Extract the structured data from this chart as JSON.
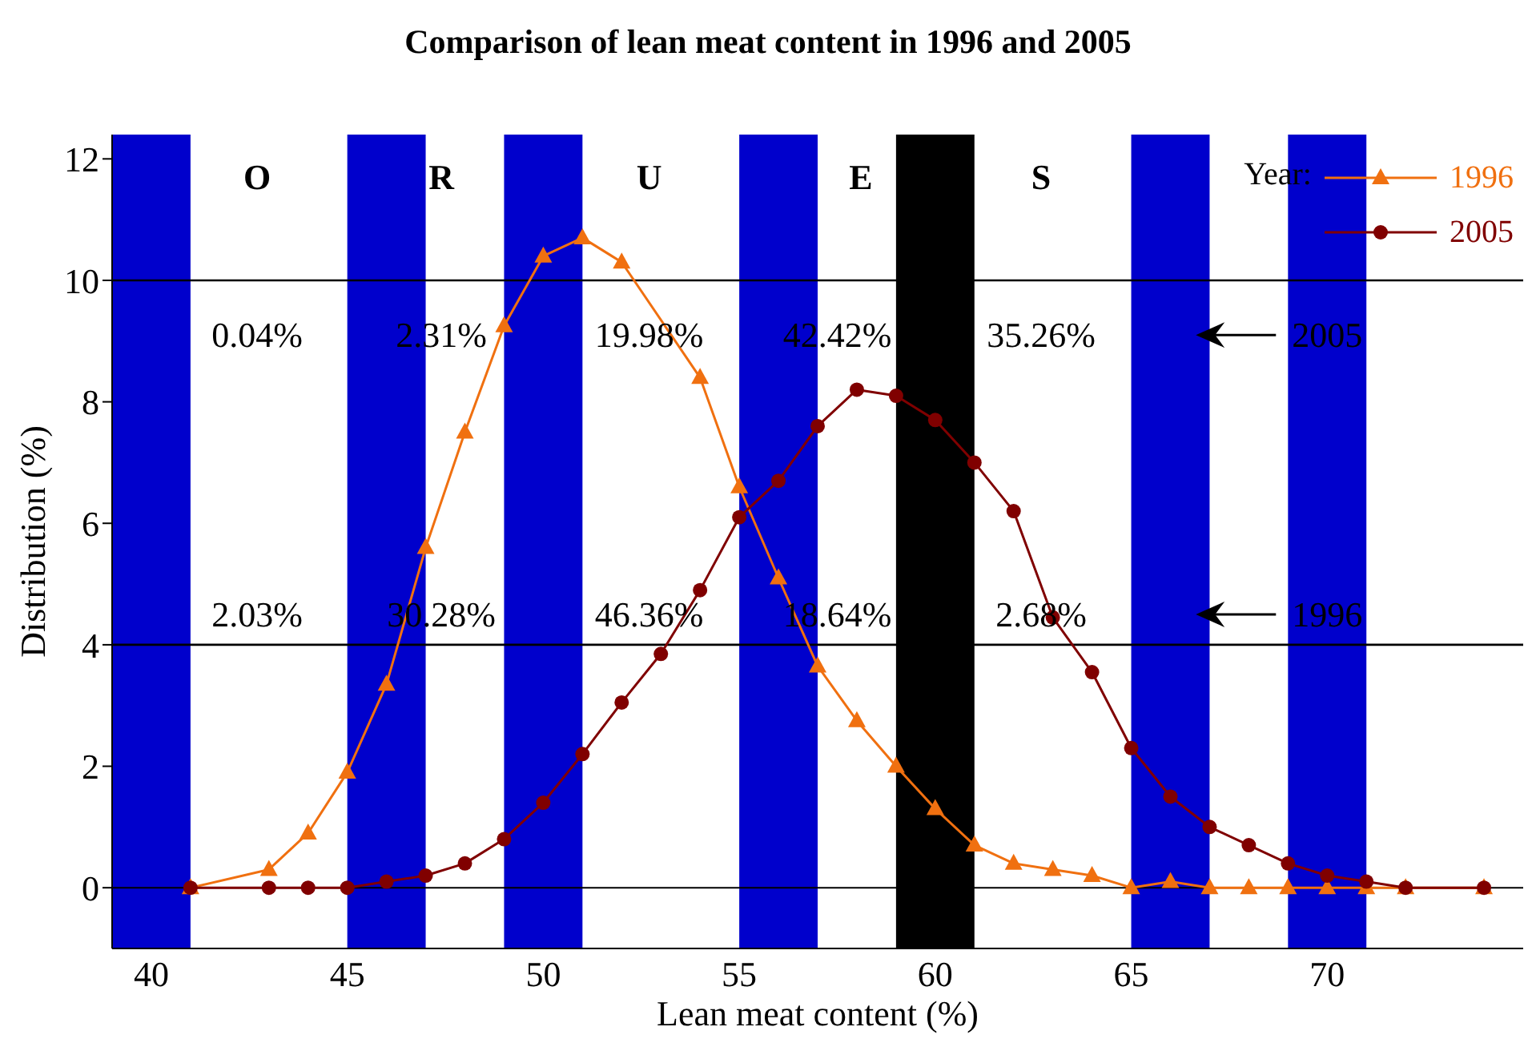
{
  "chart_data": {
    "type": "line",
    "title": "Comparison of lean meat content in 1996 and 2005",
    "xlabel": "Lean meat content (%)",
    "ylabel": "Distribution (%)",
    "legend_title": "Year:",
    "legend": "top right",
    "grid": false,
    "xlim": [
      39,
      75
    ],
    "xticks": [
      40,
      45,
      50,
      55,
      60,
      65,
      70
    ],
    "ylim": [
      -1,
      12.4
    ],
    "yticks": [
      0,
      2,
      4,
      6,
      8,
      10,
      12
    ],
    "series": [
      {
        "name": "1996",
        "color": "#f07010",
        "marker": "triangle",
        "x": [
          41,
          43,
          44,
          45,
          46,
          47,
          48,
          49,
          50,
          51,
          52,
          54,
          55,
          56,
          57,
          58,
          59,
          60,
          61,
          62,
          63,
          64,
          65,
          66,
          67,
          68,
          69,
          70,
          71,
          72,
          74
        ],
        "values": [
          0,
          0.3,
          0.9,
          1.9,
          3.35,
          5.6,
          7.5,
          9.25,
          10.4,
          10.7,
          10.3,
          8.4,
          6.6,
          5.1,
          3.65,
          2.75,
          2.0,
          1.3,
          0.7,
          0.4,
          0.3,
          0.2,
          0,
          0.1,
          0,
          0,
          0,
          0,
          0,
          0,
          0
        ]
      },
      {
        "name": "2005",
        "color": "#800000",
        "marker": "circle",
        "x": [
          41,
          43,
          44,
          45,
          46,
          47,
          48,
          49,
          50,
          51,
          52,
          53,
          54,
          55,
          56,
          57,
          58,
          59,
          60,
          61,
          62,
          63,
          64,
          65,
          66,
          67,
          68,
          69,
          70,
          71,
          72,
          74
        ],
        "values": [
          0,
          0,
          0,
          0,
          0.1,
          0.2,
          0.4,
          0.8,
          1.4,
          2.2,
          3.05,
          3.85,
          4.9,
          6.1,
          6.7,
          7.6,
          8.2,
          8.1,
          7.7,
          7.0,
          6.2,
          4.45,
          3.55,
          2.3,
          1.5,
          1.0,
          0.7,
          0.4,
          0.2,
          0.1,
          0,
          0
        ]
      }
    ],
    "bands": [
      {
        "axis": "x",
        "from": 39,
        "to": 41,
        "color": "#0000cc"
      },
      {
        "axis": "x",
        "from": 45,
        "to": 47,
        "color": "#0000cc"
      },
      {
        "axis": "x",
        "from": 49,
        "to": 51,
        "color": "#0000cc"
      },
      {
        "axis": "x",
        "from": 55,
        "to": 57,
        "color": "#0000cc"
      },
      {
        "axis": "x",
        "from": 59,
        "to": 61,
        "color": "#000000"
      },
      {
        "axis": "x",
        "from": 65,
        "to": 67,
        "color": "#0000cc"
      },
      {
        "axis": "x",
        "from": 69,
        "to": 71,
        "color": "#0000cc"
      }
    ],
    "ref_lines": [
      {
        "axis": "y",
        "value": 10,
        "color": "#000000"
      },
      {
        "axis": "y",
        "value": 4,
        "color": "#000000"
      }
    ],
    "annotations": [
      "O",
      "R",
      "U",
      "E",
      "S",
      "0.04%",
      "2.31%",
      "19.98%",
      "42.42%",
      "35.26%",
      "2.03%",
      "30.28%",
      "46.36%",
      "18.64%",
      "2.68%",
      "2005",
      "1996"
    ]
  }
}
